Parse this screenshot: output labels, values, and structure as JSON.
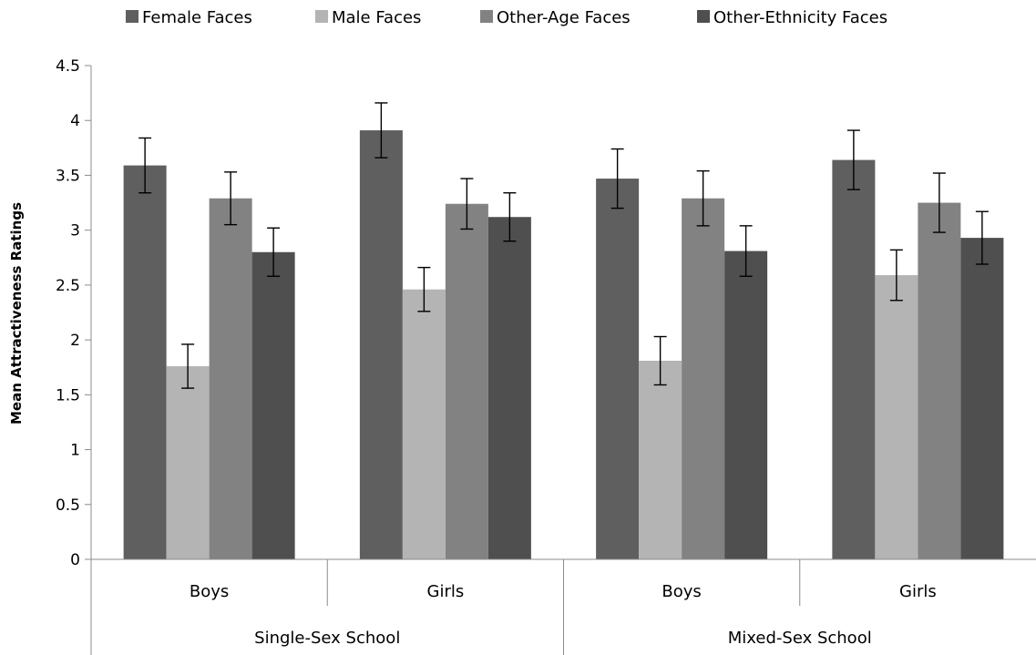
{
  "chart_data": {
    "type": "bar",
    "title": "",
    "ylabel": "Mean Attractiveness Ratings",
    "xlabel": "",
    "ylim": [
      0,
      4.5
    ],
    "yticks": [
      "0",
      "0.5",
      "1",
      "1.5",
      "2",
      "2.5",
      "3",
      "3.5",
      "4",
      "4.5"
    ],
    "grid": false,
    "legend_position": "top",
    "groups": [
      {
        "label": "Single-Sex School",
        "categories": [
          "Boys",
          "Girls"
        ]
      },
      {
        "label": "Mixed-Sex School",
        "categories": [
          "Boys",
          "Girls"
        ]
      }
    ],
    "categories": [
      "Boys",
      "Girls",
      "Boys",
      "Girls"
    ],
    "series": [
      {
        "name": "Female Faces",
        "color": "#5f5f5f",
        "values": [
          3.59,
          3.91,
          3.47,
          3.64
        ],
        "errors": [
          0.25,
          0.25,
          0.27,
          0.27
        ]
      },
      {
        "name": "Male Faces",
        "color": "#b4b4b4",
        "values": [
          1.76,
          2.46,
          1.81,
          2.59
        ],
        "errors": [
          0.2,
          0.2,
          0.22,
          0.23
        ]
      },
      {
        "name": "Other-Age Faces",
        "color": "#828282",
        "values": [
          3.29,
          3.24,
          3.29,
          3.25
        ],
        "errors": [
          0.24,
          0.23,
          0.25,
          0.27
        ]
      },
      {
        "name": "Other-Ethnicity Faces",
        "color": "#4f4f4f",
        "values": [
          2.8,
          3.12,
          2.81,
          2.93
        ],
        "errors": [
          0.22,
          0.22,
          0.23,
          0.24
        ]
      }
    ]
  }
}
